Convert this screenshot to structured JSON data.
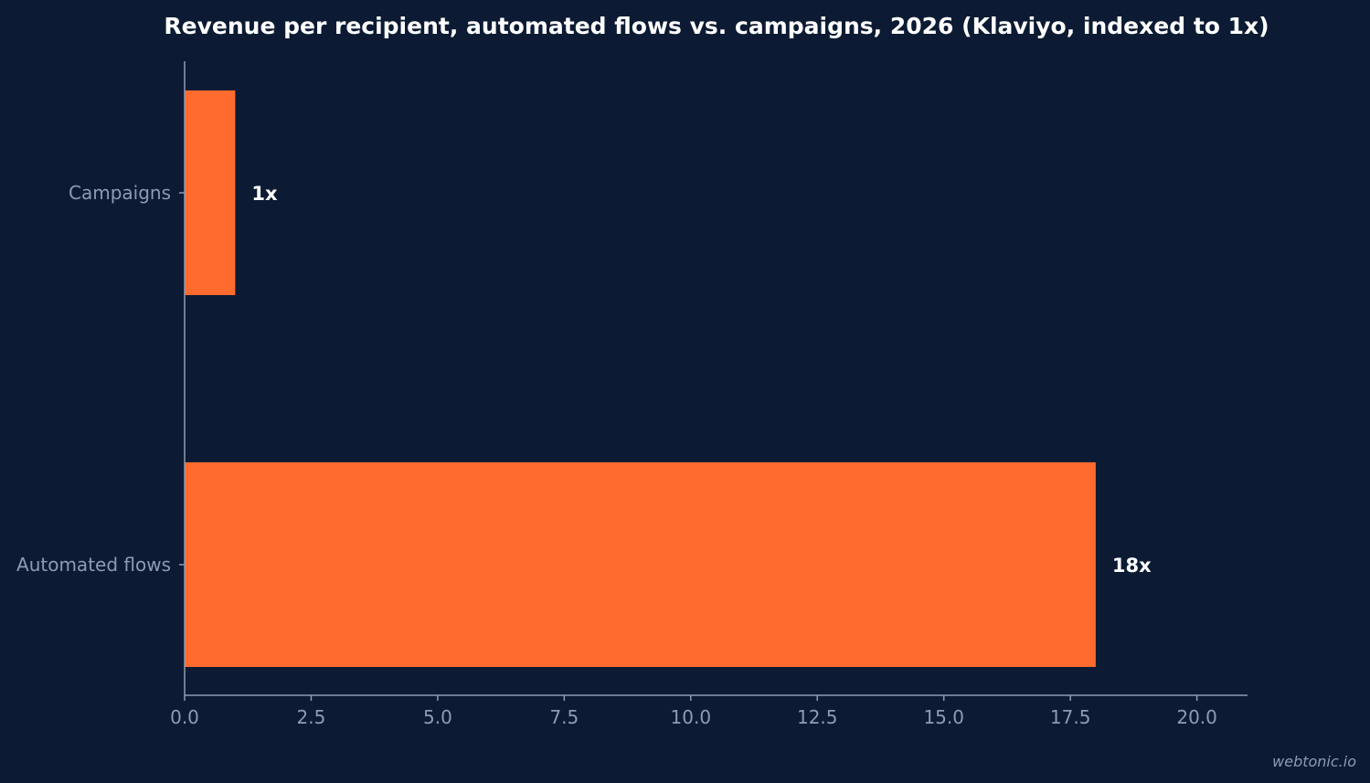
{
  "colors": {
    "background": "#0c1b33",
    "bar": "#ff6b2f",
    "axis": "#8d9bb5",
    "title": "#ffffff",
    "data_label": "#ffffff",
    "muted_text": "#8d9bb5"
  },
  "watermark": "webtonic.io",
  "chart_data": {
    "type": "bar",
    "orientation": "horizontal",
    "title": "Revenue per recipient, automated flows vs. campaigns, 2026 (Klaviyo, indexed to 1x)",
    "xlabel": "",
    "ylabel": "",
    "categories": [
      "Campaigns",
      "Automated flows"
    ],
    "values": [
      1,
      18
    ],
    "data_labels": [
      "1x",
      "18x"
    ],
    "xlim": [
      0,
      21
    ],
    "xticks": [
      0,
      2.5,
      5,
      7.5,
      10,
      12.5,
      15,
      17.5,
      20
    ],
    "xtick_labels": [
      "0.0",
      "2.5",
      "5.0",
      "7.5",
      "10.0",
      "12.5",
      "15.0",
      "17.5",
      "20.0"
    ],
    "grid": false,
    "legend": "none"
  }
}
